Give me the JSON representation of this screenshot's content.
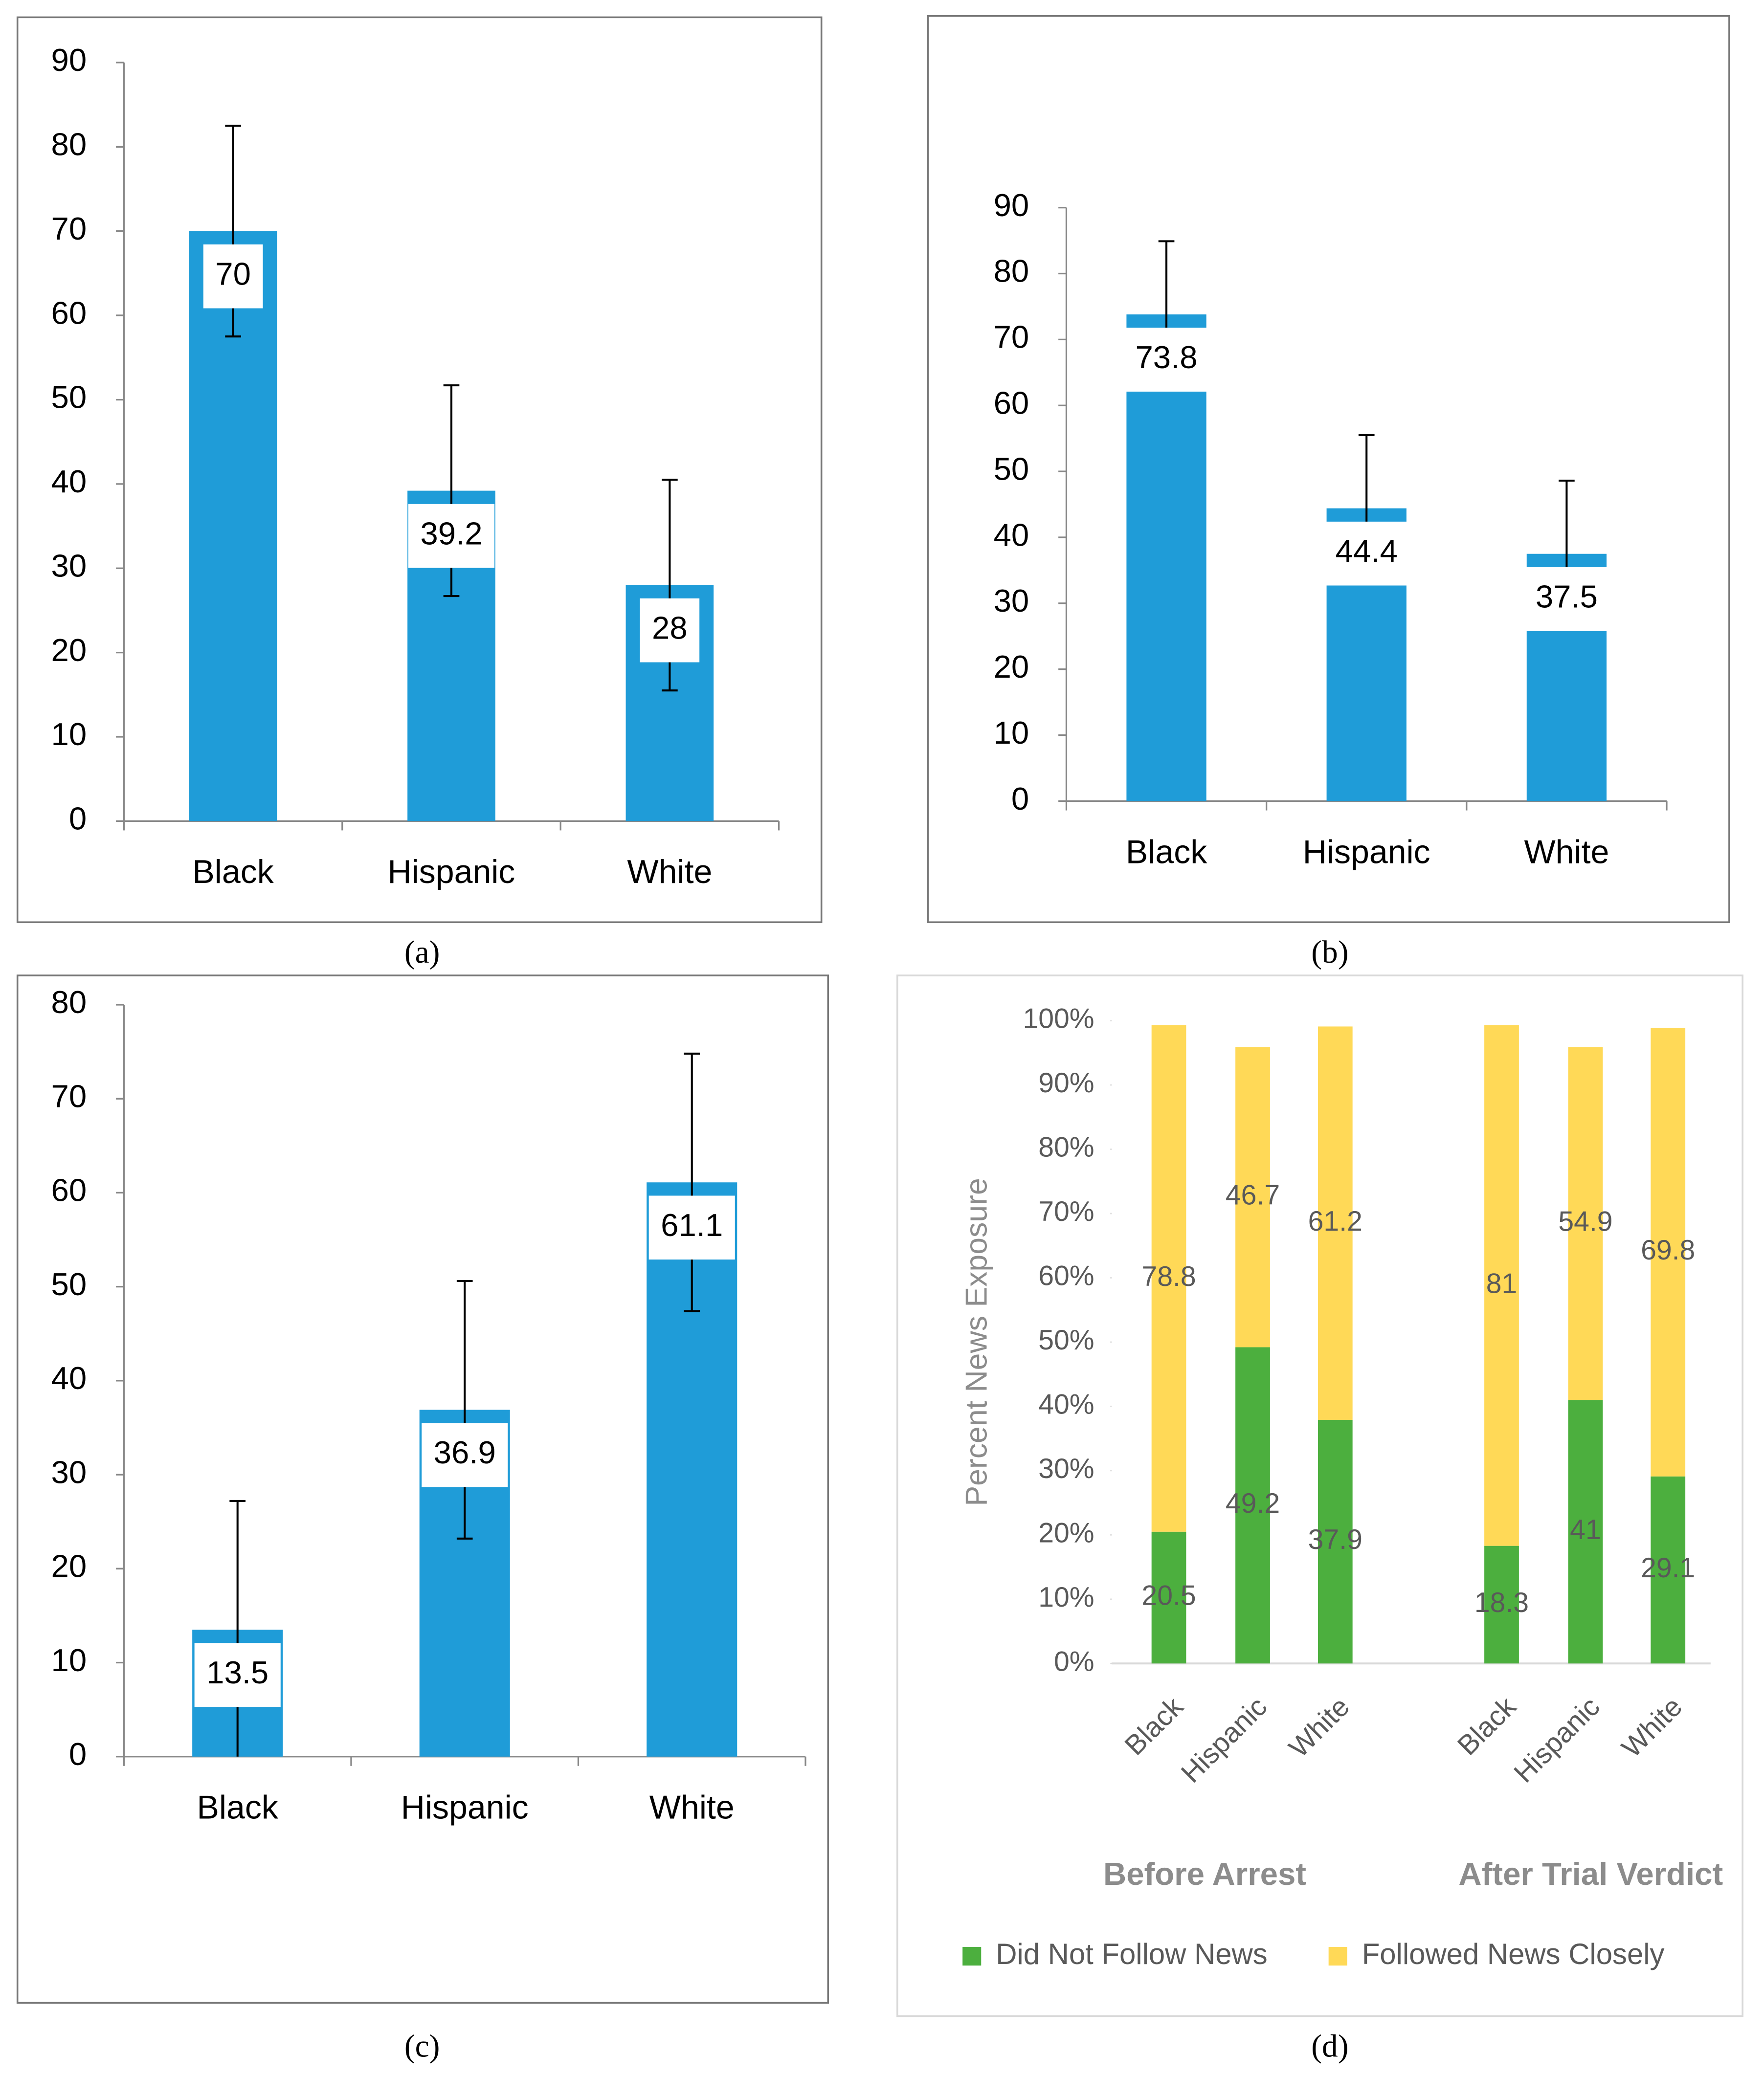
{
  "chart_data": [
    {
      "type": "bar",
      "caption": "(a)",
      "categories": [
        "Black",
        "Hispanic",
        "White"
      ],
      "values": [
        70,
        39.2,
        28
      ],
      "errors": [
        12.5,
        12.5,
        12.5
      ],
      "color": "#1f9cd8",
      "ylim": [
        0,
        90
      ],
      "yticks": [
        0,
        10,
        20,
        30,
        40,
        50,
        60,
        70,
        80,
        90
      ]
    },
    {
      "type": "bar",
      "caption": "(b)",
      "categories": [
        "Black",
        "Hispanic",
        "White"
      ],
      "values": [
        73.8,
        44.4,
        37.5
      ],
      "errors": [
        11.1,
        11.1,
        11.1
      ],
      "color": "#1f9cd8",
      "ylim": [
        0,
        90
      ],
      "yticks": [
        0,
        10,
        20,
        30,
        40,
        50,
        60,
        70,
        80,
        90
      ]
    },
    {
      "type": "bar",
      "caption": "(c)",
      "categories": [
        "Black",
        "Hispanic",
        "White"
      ],
      "values": [
        13.5,
        36.9,
        61.1
      ],
      "errors": [
        13.7,
        13.7,
        13.7
      ],
      "color": "#1f9cd8",
      "ylim": [
        0,
        80
      ],
      "yticks": [
        0,
        10,
        20,
        30,
        40,
        50,
        60,
        70,
        80
      ]
    },
    {
      "type": "stacked-bar",
      "caption": "(d)",
      "y_label": "Percent News Exposure",
      "categories": [
        "Black",
        "Hispanic",
        "White",
        "Black",
        "Hispanic",
        "White"
      ],
      "groups": [
        "Before Arrest",
        "After Trial Verdict"
      ],
      "series": [
        {
          "name": "Did Not Follow News",
          "color": "#4caf3e",
          "values": [
            20.5,
            49.2,
            37.9,
            18.3,
            41,
            29.1
          ]
        },
        {
          "name": "Followed News Closely",
          "color": "#ffd957",
          "values": [
            78.8,
            46.7,
            61.2,
            81,
            54.9,
            69.8
          ]
        }
      ],
      "ylim": [
        0,
        100
      ],
      "yticks": [
        {
          "value": 0,
          "label": "0%"
        },
        {
          "value": 10,
          "label": "10%"
        },
        {
          "value": 20,
          "label": "20%"
        },
        {
          "value": 30,
          "label": "30%"
        },
        {
          "value": 40,
          "label": "40%"
        },
        {
          "value": 50,
          "label": "50%"
        },
        {
          "value": 60,
          "label": "60%"
        },
        {
          "value": 70,
          "label": "70%"
        },
        {
          "value": 80,
          "label": "80%"
        },
        {
          "value": 90,
          "label": "90%"
        },
        {
          "value": 100,
          "label": "100%"
        }
      ],
      "legend": "bottom"
    }
  ]
}
